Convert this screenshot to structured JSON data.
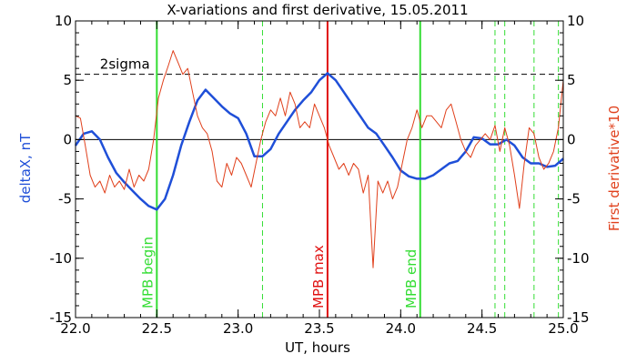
{
  "chart_data": {
    "type": "line",
    "title": "X-variations and first derivative, 15.05.2011",
    "xlabel": "UT, hours",
    "ylabel_left": "deltaX, nT",
    "ylabel_right": "First derivative*10",
    "xlim": [
      22.0,
      25.0
    ],
    "ylim": [
      -15,
      10
    ],
    "x_ticks": [
      22.0,
      22.5,
      23.0,
      23.5,
      24.0,
      24.5,
      25.0
    ],
    "x_tick_labels": [
      "22.0",
      "22.5",
      "23.0",
      "23.5",
      "24.0",
      "24.5",
      "25.0"
    ],
    "y_ticks": [
      -15,
      -10,
      -5,
      0,
      5,
      10
    ],
    "y_tick_labels": [
      "-15",
      "-10",
      "-5",
      "0",
      "5",
      "10"
    ],
    "colors": {
      "series_deltaX": "#1f4fd8",
      "series_derivative": "#e0401c",
      "mpb_line": "#33dd33",
      "max_line": "#e01010",
      "axis": "#000000",
      "sigma": "#000000"
    },
    "threshold": {
      "label": "2sigma",
      "value": 5.5
    },
    "vertical_lines": [
      {
        "x": 22.5,
        "label": "MPB begin",
        "color": "#33dd33",
        "style": "solid"
      },
      {
        "x": 23.55,
        "label": "MPB max",
        "color": "#e01010",
        "style": "solid"
      },
      {
        "x": 24.12,
        "label": "MPB end",
        "color": "#33dd33",
        "style": "solid"
      },
      {
        "x": 23.15,
        "label": "",
        "color": "#33dd33",
        "style": "dashed"
      },
      {
        "x": 24.58,
        "label": "",
        "color": "#33dd33",
        "style": "dashed"
      },
      {
        "x": 24.64,
        "label": "",
        "color": "#33dd33",
        "style": "dashed"
      },
      {
        "x": 24.82,
        "label": "",
        "color": "#33dd33",
        "style": "dashed"
      },
      {
        "x": 24.97,
        "label": "",
        "color": "#33dd33",
        "style": "dashed"
      }
    ],
    "series": [
      {
        "name": "deltaX",
        "color": "#1f4fd8",
        "x": [
          22.0,
          22.05,
          22.1,
          22.15,
          22.2,
          22.25,
          22.3,
          22.35,
          22.4,
          22.45,
          22.5,
          22.55,
          22.6,
          22.65,
          22.7,
          22.75,
          22.8,
          22.85,
          22.9,
          22.95,
          23.0,
          23.05,
          23.1,
          23.15,
          23.2,
          23.25,
          23.3,
          23.35,
          23.4,
          23.45,
          23.5,
          23.55,
          23.6,
          23.65,
          23.7,
          23.75,
          23.8,
          23.85,
          23.9,
          23.95,
          24.0,
          24.05,
          24.1,
          24.15,
          24.2,
          24.25,
          24.3,
          24.35,
          24.4,
          24.45,
          24.5,
          24.55,
          24.6,
          24.65,
          24.7,
          24.75,
          24.8,
          24.85,
          24.9,
          24.95,
          25.0
        ],
        "y": [
          -0.5,
          0.5,
          0.7,
          0,
          -1.5,
          -2.8,
          -3.6,
          -4.3,
          -5.0,
          -5.6,
          -5.9,
          -5.0,
          -3.0,
          -0.5,
          1.5,
          3.3,
          4.2,
          3.5,
          2.8,
          2.2,
          1.8,
          0.5,
          -1.4,
          -1.4,
          -0.8,
          0.5,
          1.5,
          2.5,
          3.3,
          4.0,
          5.0,
          5.6,
          5.0,
          4.0,
          3.0,
          2.0,
          1.0,
          0.5,
          -0.5,
          -1.5,
          -2.6,
          -3.1,
          -3.3,
          -3.3,
          -3.0,
          -2.5,
          -2.0,
          -1.8,
          -1.0,
          0.2,
          0.1,
          -0.4,
          -0.4,
          0.0,
          -0.5,
          -1.5,
          -2.0,
          -2.0,
          -2.3,
          -2.2,
          -1.6
        ]
      },
      {
        "name": "First derivative*10",
        "color": "#e0401c",
        "x": [
          22.0,
          22.03,
          22.06,
          22.09,
          22.12,
          22.15,
          22.18,
          22.21,
          22.24,
          22.27,
          22.3,
          22.33,
          22.36,
          22.39,
          22.42,
          22.45,
          22.48,
          22.51,
          22.54,
          22.57,
          22.6,
          22.63,
          22.66,
          22.69,
          22.72,
          22.75,
          22.78,
          22.81,
          22.84,
          22.87,
          22.9,
          22.93,
          22.96,
          22.99,
          23.02,
          23.05,
          23.08,
          23.11,
          23.14,
          23.17,
          23.2,
          23.23,
          23.26,
          23.29,
          23.32,
          23.35,
          23.38,
          23.41,
          23.44,
          23.47,
          23.5,
          23.53,
          23.56,
          23.59,
          23.62,
          23.65,
          23.68,
          23.71,
          23.74,
          23.77,
          23.8,
          23.83,
          23.86,
          23.89,
          23.92,
          23.95,
          23.98,
          24.01,
          24.04,
          24.07,
          24.1,
          24.13,
          24.16,
          24.19,
          24.22,
          24.25,
          24.28,
          24.31,
          24.34,
          24.37,
          24.4,
          24.43,
          24.46,
          24.49,
          24.52,
          24.55,
          24.58,
          24.61,
          24.64,
          24.67,
          24.7,
          24.73,
          24.76,
          24.79,
          24.82,
          24.85,
          24.88,
          24.91,
          24.94,
          24.97,
          25.0
        ],
        "y": [
          2.0,
          1.8,
          -0.5,
          -3.0,
          -4.0,
          -3.5,
          -4.5,
          -3.0,
          -4.0,
          -3.5,
          -4.2,
          -2.5,
          -4.0,
          -3.0,
          -3.5,
          -2.5,
          0.0,
          3.5,
          5.0,
          6.2,
          7.5,
          6.5,
          5.5,
          6.0,
          4.0,
          2.0,
          1.0,
          0.5,
          -1.0,
          -3.5,
          -4.0,
          -2.0,
          -3.0,
          -1.5,
          -2.0,
          -3.0,
          -4.0,
          -2.0,
          0.0,
          1.5,
          2.5,
          2.0,
          3.5,
          2.0,
          4.0,
          3.0,
          1.0,
          1.5,
          1.0,
          3.0,
          2.0,
          1.0,
          -0.5,
          -1.5,
          -2.5,
          -2.0,
          -3.0,
          -2.0,
          -2.5,
          -4.5,
          -3.0,
          -10.8,
          -3.5,
          -4.5,
          -3.5,
          -5.0,
          -4.0,
          -2.0,
          0.0,
          1.0,
          2.5,
          1.0,
          2.0,
          2.0,
          1.5,
          1.0,
          2.5,
          3.0,
          1.5,
          0.0,
          -1.0,
          -1.5,
          -0.5,
          0.0,
          0.5,
          0.0,
          1.2,
          -1.0,
          1.0,
          -0.5,
          -3.0,
          -5.8,
          -2.0,
          1.0,
          0.5,
          -1.5,
          -2.5,
          -2.0,
          -1.0,
          1.0,
          5.0
        ]
      }
    ]
  }
}
